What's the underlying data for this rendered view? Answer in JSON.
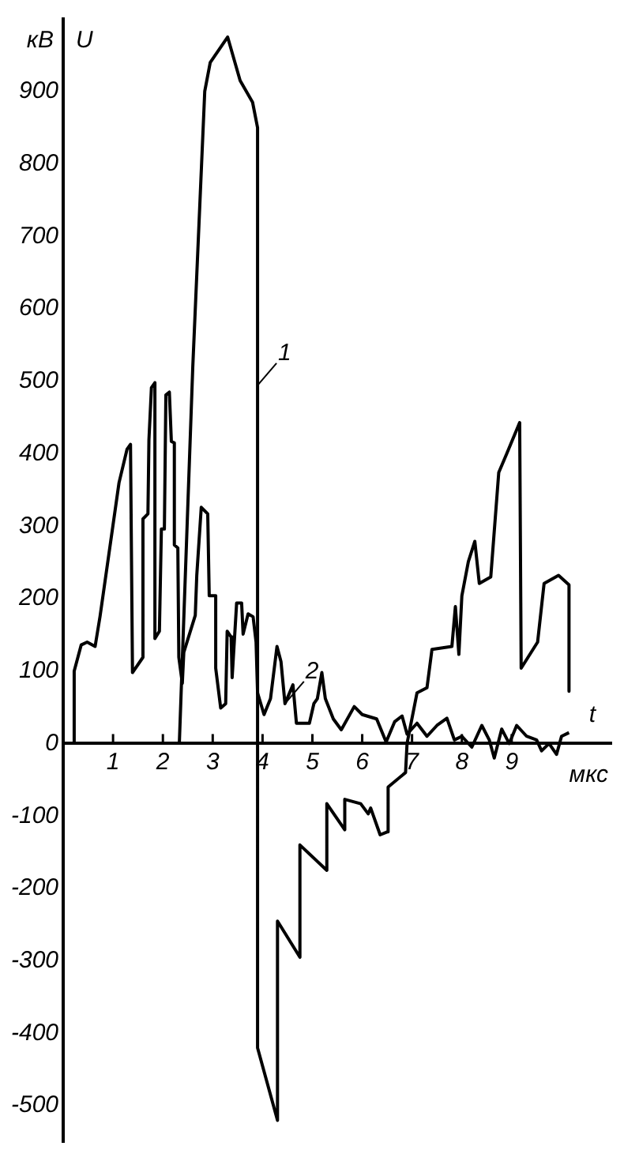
{
  "chart_data": {
    "type": "line",
    "xlabel": "t",
    "ylabel": "U",
    "annotations": [
      "кВ",
      "мкс"
    ],
    "xlim": [
      0,
      11
    ],
    "xticks": [
      1,
      2,
      3,
      4,
      5,
      6,
      7,
      8,
      9
    ],
    "ylim": [
      -550,
      1000
    ],
    "yticks": [
      -500,
      -400,
      -300,
      -200,
      -100,
      0,
      100,
      200,
      300,
      400,
      500,
      600,
      700,
      800,
      900
    ],
    "grid": false,
    "legend": false,
    "marker": "none",
    "line_style": "solid",
    "series": [
      {
        "name": "1",
        "color": "#000000",
        "x": [
          2.33,
          2.6,
          2.84,
          2.95,
          3.3,
          3.55,
          3.8,
          3.9,
          3.9,
          4.3,
          4.3,
          4.75,
          4.75,
          5.29,
          5.29,
          5.65,
          5.65,
          5.97,
          6.12,
          6.17,
          6.36,
          6.5,
          6.52,
          6.87,
          6.9,
          7.1,
          7.3,
          7.4,
          7.8,
          7.87,
          7.94,
          8.0,
          8.13,
          8.26,
          8.35,
          8.58,
          8.74,
          8.9,
          9.16,
          9.19,
          9.52,
          9.65,
          9.94,
          10.15,
          10.15
        ],
        "values": [
          0,
          520,
          900,
          940,
          975,
          915,
          885,
          850,
          -420,
          -520,
          -245,
          -295,
          -140,
          -175,
          -83,
          -119,
          -77,
          -83,
          -97,
          -89,
          -126,
          -122,
          -60,
          -40,
          0,
          70,
          77,
          130,
          134,
          189,
          123,
          204,
          251,
          279,
          221,
          230,
          374,
          400,
          443,
          104,
          140,
          221,
          232,
          219,
          72
        ]
      },
      {
        "name": "2",
        "color": "#000000",
        "x": [
          0.22,
          0.22,
          0.36,
          0.48,
          0.64,
          0.74,
          1.12,
          1.28,
          1.35,
          1.39,
          1.6,
          1.6,
          1.7,
          1.72,
          1.77,
          1.84,
          1.84,
          1.93,
          1.97,
          2.03,
          2.06,
          2.13,
          2.17,
          2.23,
          2.23,
          2.3,
          2.32,
          2.39,
          2.42,
          2.65,
          2.68,
          2.77,
          2.9,
          2.93,
          3.06,
          3.06,
          3.16,
          3.26,
          3.29,
          3.37,
          3.39,
          3.48,
          3.58,
          3.61,
          3.71,
          3.81,
          3.87,
          3.9,
          4.03,
          4.16,
          4.29,
          4.37,
          4.45,
          4.61,
          4.68,
          4.94,
          5.03,
          5.1,
          5.19,
          5.26,
          5.42,
          5.58,
          5.84,
          6.0,
          6.29,
          6.48,
          6.65,
          6.8,
          6.9,
          7.1,
          7.3,
          7.5,
          7.7,
          7.85,
          8.0,
          8.2,
          8.4,
          8.55,
          8.65,
          8.8,
          8.95,
          9.1,
          9.3,
          9.5,
          9.6,
          9.75,
          9.9,
          10.0,
          10.15
        ],
        "values": [
          0,
          100,
          136,
          140,
          134,
          176,
          360,
          406,
          413,
          98,
          119,
          310,
          317,
          419,
          491,
          498,
          145,
          155,
          296,
          296,
          481,
          485,
          417,
          415,
          274,
          270,
          119,
          83,
          126,
          177,
          232,
          326,
          317,
          204,
          204,
          104,
          49,
          55,
          155,
          147,
          91,
          194,
          194,
          151,
          179,
          175,
          140,
          70,
          40,
          62,
          134,
          113,
          55,
          81,
          28,
          28,
          55,
          62,
          98,
          62,
          34,
          19,
          51,
          40,
          34,
          2,
          30,
          38,
          13,
          28,
          10,
          25,
          35,
          5,
          10,
          -5,
          25,
          5,
          -20,
          20,
          0,
          25,
          10,
          5,
          -10,
          0,
          -15,
          10,
          15
        ]
      }
    ]
  }
}
